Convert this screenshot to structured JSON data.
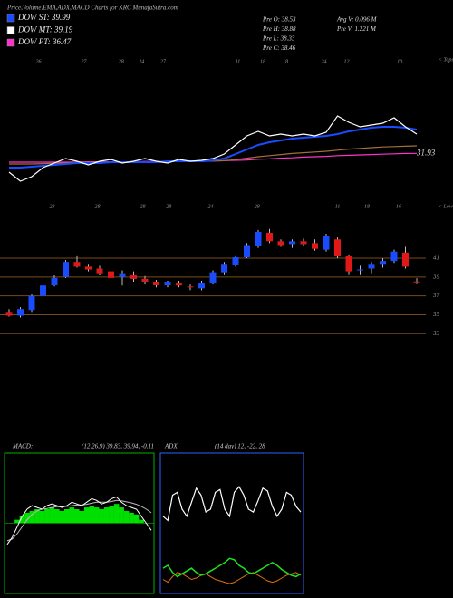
{
  "chart_data": [
    {
      "type": "line",
      "title": "Price,Volume,EMA,ADX,MACD Charts for KRC MunafaSutra.com",
      "legend": [
        {
          "label": "DOW ST: 39.99",
          "color": "#1a4cff"
        },
        {
          "label": "DOW MT: 39.19",
          "color": "#ffffff"
        },
        {
          "label": "DOW PT: 36.47",
          "color": "#ff33cc"
        }
      ],
      "stats": [
        "Pre O: 38.53",
        "Pre H: 38.88",
        "Pre L: 38.33",
        "Pre C: 38.46",
        "Avg V: 0.096 M",
        "Pre V: 1.221 M"
      ],
      "tops_label": "< Tops",
      "lows_label": "< Lows",
      "top_ticks": [
        {
          "value": 2.6,
          "label": "26"
        },
        {
          "value": 6.6,
          "label": "27"
        },
        {
          "value": 9.9,
          "label": "28"
        },
        {
          "value": 11.7,
          "label": "24"
        },
        {
          "value": 13.6,
          "label": "27"
        },
        {
          "value": 20.2,
          "label": "11"
        },
        {
          "value": 22.4,
          "label": "18"
        },
        {
          "value": 24.4,
          "label": "18"
        },
        {
          "value": 27.8,
          "label": "24"
        },
        {
          "value": 29.8,
          "label": "12"
        },
        {
          "value": 34.5,
          "label": "10"
        }
      ],
      "low_ticks": [
        {
          "value": 3.8,
          "label": "23"
        },
        {
          "value": 7.8,
          "label": "28"
        },
        {
          "value": 11.8,
          "label": "28"
        },
        {
          "value": 14.1,
          "label": "28"
        },
        {
          "value": 17.8,
          "label": "24"
        },
        {
          "value": 21.9,
          "label": "28"
        },
        {
          "value": 29,
          "label": "11"
        },
        {
          "value": 31.6,
          "label": "18"
        },
        {
          "value": 34.4,
          "label": "16"
        }
      ],
      "ylim": [
        18,
        59.25
      ],
      "series": [
        {
          "color": "#ffffff",
          "values": [
            26.75,
            24.25,
            25.5,
            28,
            29.25,
            30.5,
            29.75,
            28.75,
            29.75,
            30.25,
            29.25,
            29.75,
            30.5,
            29.75,
            29.25,
            30.25,
            29.75,
            30,
            30.5,
            31.75,
            34.25,
            36.75,
            38,
            36.75,
            37.25,
            36.75,
            37.25,
            36.75,
            37.75,
            42.25,
            40.5,
            39.25,
            39.75,
            40.25,
            41.75,
            39.25,
            37.25
          ]
        },
        {
          "color": "#1a4cff",
          "values": [
            28,
            28,
            28.25,
            28.5,
            28.75,
            29,
            29.25,
            29.25,
            29.25,
            29.5,
            29.5,
            29.5,
            29.5,
            29.5,
            29.75,
            29.75,
            29.75,
            29.75,
            30,
            30.5,
            31.75,
            33,
            34.25,
            35,
            35.5,
            36,
            36.25,
            36.5,
            36.75,
            37.25,
            38,
            38.5,
            39,
            39.25,
            39.25,
            39,
            38.5
          ]
        },
        {
          "color": "#a0703a",
          "values": [
            29,
            29,
            29,
            29.1,
            29.2,
            29.3,
            29.4,
            29.4,
            29.5,
            29.5,
            29.5,
            29.6,
            29.6,
            29.6,
            29.6,
            29.7,
            29.7,
            29.7,
            29.8,
            29.9,
            30.2,
            30.6,
            31,
            31.3,
            31.6,
            31.9,
            32.1,
            32.3,
            32.5,
            32.8,
            33.1,
            33.3,
            33.5,
            33.7,
            33.8,
            33.9,
            34
          ]
        },
        {
          "color": "#ff33cc",
          "values": [
            29.5,
            29.5,
            29.5,
            29.5,
            29.5,
            29.5,
            29.5,
            29.6,
            29.6,
            29.6,
            29.6,
            29.6,
            29.7,
            29.7,
            29.7,
            29.7,
            29.8,
            29.8,
            29.8,
            29.9,
            30,
            30.1,
            30.3,
            30.4,
            30.6,
            30.7,
            30.9,
            31,
            31.1,
            31.3,
            31.4,
            31.5,
            31.6,
            31.7,
            31.8,
            31.9,
            31.93
          ]
        }
      ]
    },
    {
      "type": "candlestick",
      "up_color": "#1a4cff",
      "down_color": "#e01818",
      "grid_color": "#7a4a1a",
      "ylim": [
        32.35,
        44.85
      ],
      "yticks": [
        41,
        39,
        37,
        35,
        33
      ],
      "open": [
        35.3,
        34.9,
        35.5,
        37.0,
        38.2,
        39.0,
        40.6,
        40.1,
        39.9,
        39.6,
        39.0,
        39.2,
        38.8,
        38.5,
        38.2,
        38.4,
        38.0,
        37.8,
        38.4,
        39.5,
        40.3,
        41.1,
        42.3,
        43.7,
        42.8,
        42.5,
        42.8,
        42.6,
        41.9,
        43.0,
        41.2,
        39.7,
        39.9,
        40.4,
        40.7,
        41.6,
        38.53
      ],
      "high": [
        35.6,
        35.8,
        37.2,
        38.3,
        39.2,
        40.8,
        41.3,
        40.4,
        40.2,
        39.8,
        39.7,
        39.6,
        39.1,
        38.7,
        38.6,
        38.6,
        38.3,
        38.6,
        39.7,
        40.6,
        41.3,
        42.6,
        44.0,
        44.1,
        43.0,
        43.0,
        43.1,
        43.0,
        43.6,
        43.2,
        41.4,
        40.2,
        40.6,
        41.0,
        41.9,
        42.2,
        38.88
      ],
      "low": [
        34.8,
        34.7,
        35.3,
        36.8,
        38.0,
        38.9,
        40.0,
        39.6,
        39.2,
        38.6,
        38.1,
        38.5,
        38.3,
        37.9,
        37.9,
        37.9,
        37.6,
        37.6,
        38.3,
        39.3,
        40.1,
        41.0,
        42.1,
        42.6,
        42.2,
        42.1,
        42.3,
        41.8,
        41.7,
        41.0,
        39.3,
        39.3,
        39.4,
        40.0,
        40.5,
        39.9,
        38.33
      ],
      "close": [
        34.9,
        35.6,
        37.0,
        38.1,
        38.9,
        40.6,
        40.1,
        39.8,
        39.4,
        38.9,
        39.4,
        38.8,
        38.5,
        38.2,
        38.5,
        38.1,
        37.9,
        38.4,
        39.5,
        40.4,
        41.1,
        42.4,
        43.8,
        42.8,
        42.4,
        42.8,
        42.5,
        42.0,
        43.4,
        41.2,
        39.6,
        39.8,
        40.4,
        40.7,
        41.7,
        40.1,
        38.46
      ]
    },
    {
      "type": "macd",
      "title": "MACD:",
      "params": "(12,26,9) 39.83, 39.94, -0.11",
      "ylim": [
        -2,
        2
      ],
      "macd": [
        -0.6,
        -0.4,
        -0.1,
        0.2,
        0.4,
        0.5,
        0.45,
        0.4,
        0.5,
        0.55,
        0.5,
        0.45,
        0.5,
        0.6,
        0.55,
        0.5,
        0.6,
        0.7,
        0.65,
        0.55,
        0.6,
        0.7,
        0.75,
        0.6,
        0.5,
        0.45,
        0.4,
        0.2,
        0,
        -0.2
      ],
      "signal": [
        -0.5,
        -0.45,
        -0.3,
        -0.1,
        0.1,
        0.25,
        0.35,
        0.4,
        0.42,
        0.45,
        0.47,
        0.47,
        0.48,
        0.5,
        0.52,
        0.52,
        0.54,
        0.57,
        0.6,
        0.6,
        0.6,
        0.62,
        0.65,
        0.64,
        0.61,
        0.58,
        0.54,
        0.48,
        0.4,
        0.3
      ],
      "histogram": [
        0,
        0,
        0.1,
        0.2,
        0.3,
        0.35,
        0.4,
        0.35,
        0.4,
        0.45,
        0.4,
        0.35,
        0.4,
        0.45,
        0.4,
        0.35,
        0.45,
        0.5,
        0.45,
        0.4,
        0.45,
        0.5,
        0.55,
        0.45,
        0.35,
        0.3,
        0.25,
        0.1,
        0,
        0
      ]
    },
    {
      "type": "adx",
      "title": "ADX",
      "params": "(14 day) 12, -22, 28",
      "ylim": [
        0,
        100
      ],
      "adx": [
        55,
        52,
        70,
        72,
        60,
        55,
        65,
        75,
        70,
        58,
        60,
        72,
        74,
        60,
        55,
        72,
        76,
        70,
        60,
        58,
        66,
        75,
        73,
        62,
        55,
        60,
        72,
        70,
        62,
        58
      ],
      "plus_di": [
        18,
        20,
        15,
        12,
        14,
        16,
        18,
        15,
        13,
        14,
        16,
        18,
        20,
        22,
        25,
        24,
        20,
        18,
        15,
        14,
        16,
        18,
        20,
        22,
        20,
        17,
        15,
        13,
        12,
        14
      ],
      "minus_di": [
        10,
        8,
        12,
        15,
        14,
        12,
        10,
        11,
        13,
        14,
        12,
        10,
        9,
        8,
        7,
        8,
        10,
        12,
        14,
        15,
        13,
        11,
        9,
        8,
        9,
        11,
        13,
        14,
        15,
        13
      ]
    }
  ]
}
